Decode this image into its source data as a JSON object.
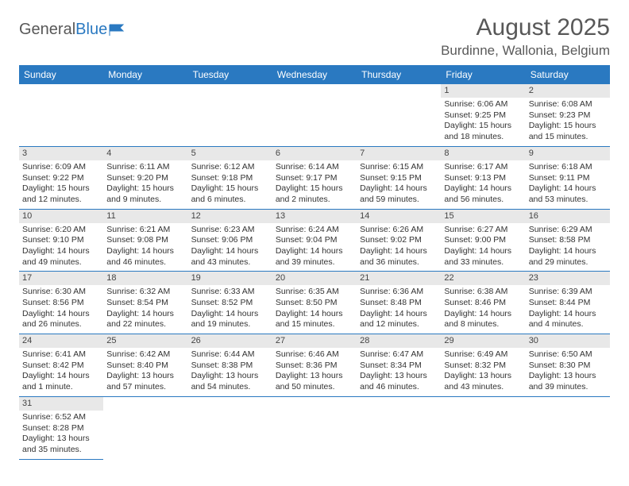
{
  "brand": {
    "part1": "General",
    "part2": "Blue"
  },
  "title": "August 2025",
  "location": "Burdinne, Wallonia, Belgium",
  "accent_color": "#2a79c1",
  "header_bg": "#e8e8e8",
  "weekdays": [
    "Sunday",
    "Monday",
    "Tuesday",
    "Wednesday",
    "Thursday",
    "Friday",
    "Saturday"
  ],
  "first_weekday": 5,
  "days": [
    {
      "n": 1,
      "sr": "6:06 AM",
      "ss": "9:25 PM",
      "dl": "15 hours and 18 minutes."
    },
    {
      "n": 2,
      "sr": "6:08 AM",
      "ss": "9:23 PM",
      "dl": "15 hours and 15 minutes."
    },
    {
      "n": 3,
      "sr": "6:09 AM",
      "ss": "9:22 PM",
      "dl": "15 hours and 12 minutes."
    },
    {
      "n": 4,
      "sr": "6:11 AM",
      "ss": "9:20 PM",
      "dl": "15 hours and 9 minutes."
    },
    {
      "n": 5,
      "sr": "6:12 AM",
      "ss": "9:18 PM",
      "dl": "15 hours and 6 minutes."
    },
    {
      "n": 6,
      "sr": "6:14 AM",
      "ss": "9:17 PM",
      "dl": "15 hours and 2 minutes."
    },
    {
      "n": 7,
      "sr": "6:15 AM",
      "ss": "9:15 PM",
      "dl": "14 hours and 59 minutes."
    },
    {
      "n": 8,
      "sr": "6:17 AM",
      "ss": "9:13 PM",
      "dl": "14 hours and 56 minutes."
    },
    {
      "n": 9,
      "sr": "6:18 AM",
      "ss": "9:11 PM",
      "dl": "14 hours and 53 minutes."
    },
    {
      "n": 10,
      "sr": "6:20 AM",
      "ss": "9:10 PM",
      "dl": "14 hours and 49 minutes."
    },
    {
      "n": 11,
      "sr": "6:21 AM",
      "ss": "9:08 PM",
      "dl": "14 hours and 46 minutes."
    },
    {
      "n": 12,
      "sr": "6:23 AM",
      "ss": "9:06 PM",
      "dl": "14 hours and 43 minutes."
    },
    {
      "n": 13,
      "sr": "6:24 AM",
      "ss": "9:04 PM",
      "dl": "14 hours and 39 minutes."
    },
    {
      "n": 14,
      "sr": "6:26 AM",
      "ss": "9:02 PM",
      "dl": "14 hours and 36 minutes."
    },
    {
      "n": 15,
      "sr": "6:27 AM",
      "ss": "9:00 PM",
      "dl": "14 hours and 33 minutes."
    },
    {
      "n": 16,
      "sr": "6:29 AM",
      "ss": "8:58 PM",
      "dl": "14 hours and 29 minutes."
    },
    {
      "n": 17,
      "sr": "6:30 AM",
      "ss": "8:56 PM",
      "dl": "14 hours and 26 minutes."
    },
    {
      "n": 18,
      "sr": "6:32 AM",
      "ss": "8:54 PM",
      "dl": "14 hours and 22 minutes."
    },
    {
      "n": 19,
      "sr": "6:33 AM",
      "ss": "8:52 PM",
      "dl": "14 hours and 19 minutes."
    },
    {
      "n": 20,
      "sr": "6:35 AM",
      "ss": "8:50 PM",
      "dl": "14 hours and 15 minutes."
    },
    {
      "n": 21,
      "sr": "6:36 AM",
      "ss": "8:48 PM",
      "dl": "14 hours and 12 minutes."
    },
    {
      "n": 22,
      "sr": "6:38 AM",
      "ss": "8:46 PM",
      "dl": "14 hours and 8 minutes."
    },
    {
      "n": 23,
      "sr": "6:39 AM",
      "ss": "8:44 PM",
      "dl": "14 hours and 4 minutes."
    },
    {
      "n": 24,
      "sr": "6:41 AM",
      "ss": "8:42 PM",
      "dl": "14 hours and 1 minute."
    },
    {
      "n": 25,
      "sr": "6:42 AM",
      "ss": "8:40 PM",
      "dl": "13 hours and 57 minutes."
    },
    {
      "n": 26,
      "sr": "6:44 AM",
      "ss": "8:38 PM",
      "dl": "13 hours and 54 minutes."
    },
    {
      "n": 27,
      "sr": "6:46 AM",
      "ss": "8:36 PM",
      "dl": "13 hours and 50 minutes."
    },
    {
      "n": 28,
      "sr": "6:47 AM",
      "ss": "8:34 PM",
      "dl": "13 hours and 46 minutes."
    },
    {
      "n": 29,
      "sr": "6:49 AM",
      "ss": "8:32 PM",
      "dl": "13 hours and 43 minutes."
    },
    {
      "n": 30,
      "sr": "6:50 AM",
      "ss": "8:30 PM",
      "dl": "13 hours and 39 minutes."
    },
    {
      "n": 31,
      "sr": "6:52 AM",
      "ss": "8:28 PM",
      "dl": "13 hours and 35 minutes."
    }
  ],
  "labels": {
    "sunrise": "Sunrise:",
    "sunset": "Sunset:",
    "daylight": "Daylight:"
  }
}
